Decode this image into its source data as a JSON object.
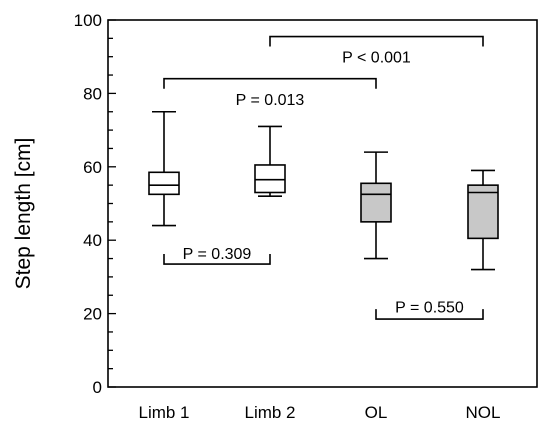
{
  "chart_data": {
    "type": "boxplot",
    "ylabel": "Step length [cm]",
    "ylim": [
      0,
      100
    ],
    "yticks": [
      0,
      20,
      40,
      60,
      80,
      100
    ],
    "yminor_step": 5,
    "categories": [
      "Limb 1",
      "Limb 2",
      "OL",
      "NOL"
    ],
    "boxes": [
      {
        "category": "Limb 1",
        "min": 44,
        "q1": 52.5,
        "median": 55,
        "q3": 58.5,
        "max": 75,
        "fill": "#ffffff"
      },
      {
        "category": "Limb 2",
        "min": 52,
        "q1": 53,
        "median": 56.5,
        "q3": 60.5,
        "max": 71,
        "fill": "#ffffff"
      },
      {
        "category": "OL",
        "min": 35,
        "q1": 45,
        "median": 52.5,
        "q3": 55.5,
        "max": 64,
        "fill": "#c8c8c8"
      },
      {
        "category": "NOL",
        "min": 32,
        "q1": 40.5,
        "median": 53,
        "q3": 55,
        "max": 59,
        "fill": "#c8c8c8"
      }
    ],
    "annotations": [
      {
        "label": "P = 0.309",
        "from": "Limb 1",
        "to": "Limb 2",
        "y": 33.5,
        "orientation": "down",
        "label_y": 36.5
      },
      {
        "label": "P = 0.013",
        "from": "Limb 1",
        "to": "OL",
        "y": 84,
        "orientation": "up",
        "label_y": 78.5
      },
      {
        "label": "P < 0.001",
        "from": "Limb 2",
        "to": "NOL",
        "y": 95.5,
        "orientation": "up",
        "label_y": 90
      },
      {
        "label": "P = 0.550",
        "from": "OL",
        "to": "NOL",
        "y": 18.5,
        "orientation": "down",
        "label_y": 22
      }
    ],
    "grid": false,
    "legend": "none"
  }
}
